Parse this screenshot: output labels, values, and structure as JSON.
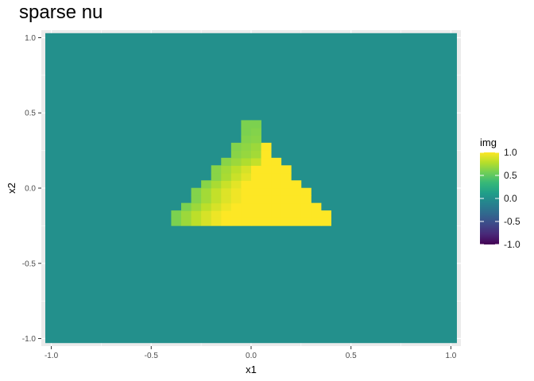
{
  "chart_data": {
    "type": "heatmap",
    "title": "sparse nu",
    "xlabel": "x1",
    "ylabel": "x2",
    "xlim": [
      -1.05,
      1.05
    ],
    "ylim": [
      -1.05,
      1.05
    ],
    "x_ticks": [
      -1.0,
      -0.5,
      0.0,
      0.5,
      1.0
    ],
    "y_ticks": [
      -1.0,
      -0.5,
      0.0,
      0.5,
      1.0
    ],
    "x_tick_labels": [
      "-1.0",
      "-0.5",
      "0.0",
      "0.5",
      "1.0"
    ],
    "y_tick_labels": [
      "-1.0",
      "-0.5",
      "0.0",
      "0.5",
      "1.0"
    ],
    "grid": true,
    "background_value": 0.0,
    "background_extent": {
      "x": [
        -1.03,
        1.03
      ],
      "y": [
        -1.03,
        1.03
      ]
    },
    "cell_size": 0.05,
    "region": {
      "shape": "triangle",
      "y_bottom": -0.25,
      "rows": [
        {
          "y": -0.2,
          "x_from": -0.4,
          "x_to": 0.4,
          "ramp": [
            0.6,
            0.7,
            0.8,
            0.88,
            0.95
          ]
        },
        {
          "y": -0.15,
          "x_from": -0.35,
          "x_to": 0.35,
          "ramp": [
            0.6,
            0.7,
            0.8,
            0.88,
            0.95
          ]
        },
        {
          "y": -0.1,
          "x_from": -0.3,
          "x_to": 0.3,
          "ramp": [
            0.62,
            0.72,
            0.82,
            0.9,
            0.96
          ]
        },
        {
          "y": -0.05,
          "x_from": -0.3,
          "x_to": 0.3,
          "ramp": [
            0.62,
            0.72,
            0.82,
            0.9,
            0.96
          ]
        },
        {
          "y": 0.0,
          "x_from": -0.25,
          "x_to": 0.25,
          "ramp": [
            0.64,
            0.74,
            0.84,
            0.92
          ]
        },
        {
          "y": 0.05,
          "x_from": -0.2,
          "x_to": 0.2,
          "ramp": [
            0.64,
            0.74,
            0.84,
            0.92
          ]
        },
        {
          "y": 0.1,
          "x_from": -0.2,
          "x_to": 0.2,
          "ramp": [
            0.64,
            0.72,
            0.8,
            0.88
          ]
        },
        {
          "y": 0.15,
          "x_from": -0.15,
          "x_to": 0.15,
          "ramp": [
            0.64,
            0.7,
            0.76,
            0.82
          ]
        },
        {
          "y": 0.2,
          "x_from": -0.1,
          "x_to": 0.1,
          "ramp": [
            0.64,
            0.68,
            0.72
          ]
        },
        {
          "y": 0.25,
          "x_from": -0.1,
          "x_to": 0.1,
          "ramp": [
            0.62,
            0.66,
            0.7
          ]
        },
        {
          "y": 0.3,
          "x_from": -0.05,
          "x_to": 0.05,
          "ramp": [
            0.62,
            0.64
          ]
        },
        {
          "y": 0.35,
          "x_from": -0.05,
          "x_to": 0.05,
          "ramp": [
            0.6,
            0.62
          ]
        },
        {
          "y": 0.4,
          "x_from": -0.05,
          "x_to": 0.05,
          "ramp": [
            0.6,
            0.6
          ]
        }
      ],
      "peak_value": 1.0
    },
    "colorbar": {
      "title": "img",
      "scale": "viridis",
      "limits": [
        -1.0,
        1.0
      ],
      "ticks": [
        1.0,
        0.5,
        0.0,
        -0.5,
        -1.0
      ],
      "tick_labels": [
        "1.0",
        "0.5",
        "0.0",
        "-0.5",
        "-1.0"
      ],
      "placement": "right"
    }
  }
}
